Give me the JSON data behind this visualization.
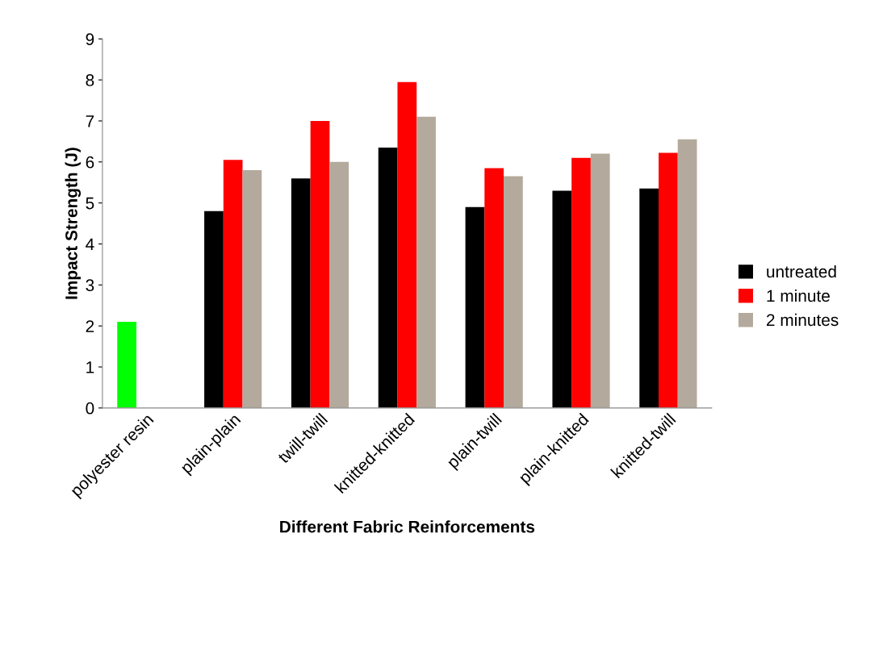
{
  "chart_data": {
    "type": "bar",
    "xlabel": "Different Fabric Reinforcements",
    "ylabel": "Impact Strength (J)",
    "categories": [
      "polyester resin",
      "plain-plain",
      "twill-twill",
      "knitted-knitted",
      "plain-twill",
      "plain-knitted",
      "knitted-twill"
    ],
    "series": [
      {
        "name": "untreated",
        "color": "#000000",
        "colors": [
          "#00ff00",
          "#000000",
          "#000000",
          "#000000",
          "#000000",
          "#000000",
          "#000000"
        ],
        "values": [
          2.1,
          4.8,
          5.6,
          6.35,
          4.9,
          5.3,
          5.35
        ]
      },
      {
        "name": "1 minute",
        "color": "#ff0000",
        "values": [
          null,
          6.05,
          7.0,
          7.95,
          5.85,
          6.1,
          6.22
        ]
      },
      {
        "name": "2 minutes",
        "color": "#b3a99c",
        "values": [
          null,
          5.8,
          6.0,
          7.1,
          5.65,
          6.2,
          6.55
        ]
      }
    ],
    "ylim": [
      0,
      9
    ],
    "yticks": [
      0,
      1,
      2,
      3,
      4,
      5,
      6,
      7,
      8,
      9
    ],
    "grid": false,
    "legend": "right"
  }
}
